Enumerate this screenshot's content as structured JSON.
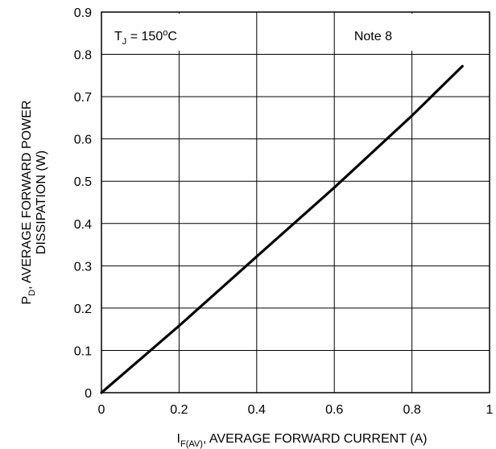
{
  "chart_data": {
    "type": "line",
    "title": "",
    "xlabel": {
      "symbol": "I",
      "subscript": "F(AV)",
      "text": ", AVERAGE FORWARD CURRENT (A)"
    },
    "ylabel": {
      "line1_symbol": "P",
      "line1_subscript": "D",
      "line1_text": ", AVERAGE FORWARD POWER",
      "line2_text": "DISSIPATION (W)"
    },
    "xlim": [
      0,
      1
    ],
    "ylim": [
      0,
      0.9
    ],
    "x_ticks": [
      0,
      0.2,
      0.4,
      0.6,
      0.8,
      1
    ],
    "x_tick_labels": [
      "0",
      "0.2",
      "0.4",
      "0.6",
      "0.8",
      "1"
    ],
    "y_ticks": [
      0,
      0.1,
      0.2,
      0.3,
      0.4,
      0.5,
      0.6,
      0.7,
      0.8,
      0.9
    ],
    "y_tick_labels": [
      "0",
      "0.1",
      "0.2",
      "0.3",
      "0.4",
      "0.5",
      "0.6",
      "0.7",
      "0.8",
      "0.9"
    ],
    "grid": true,
    "series": [
      {
        "x": [
          0,
          0.2,
          0.4,
          0.6,
          0.8,
          0.93
        ],
        "y": [
          0,
          0.158,
          0.322,
          0.485,
          0.655,
          0.772
        ],
        "color": "#000000"
      }
    ],
    "annotations": [
      {
        "symbol": "T",
        "subscript": "J",
        "text_before_sup": " = 150",
        "superscript": "o",
        "text_after_sup": "C",
        "position": "top-left"
      },
      {
        "text": "Note 8",
        "position": "top-right"
      }
    ]
  }
}
